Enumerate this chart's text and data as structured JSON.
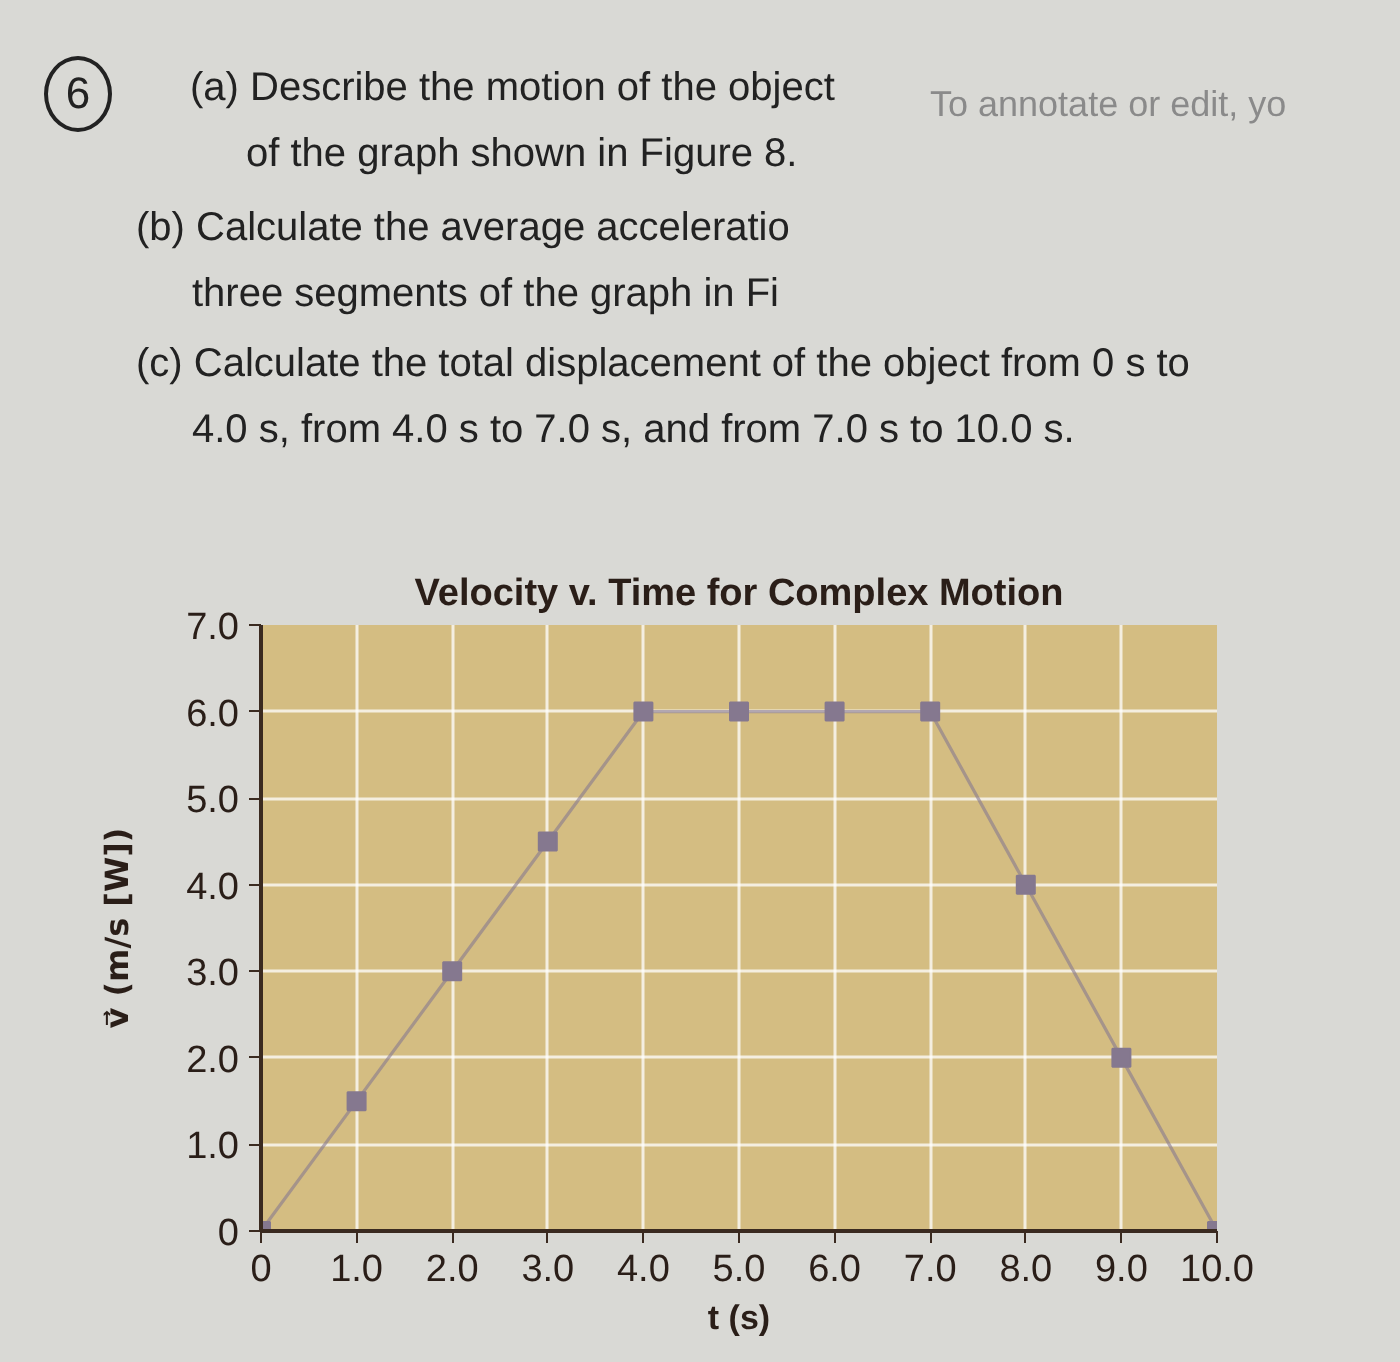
{
  "chart_data": {
    "type": "line",
    "title": "Velocity v. Time for Complex Motion",
    "xlabel": "t (s)",
    "ylabel": "v⃗ (m/s [W])",
    "x": [
      0,
      1,
      2,
      3,
      4,
      5,
      6,
      7,
      8,
      9,
      10
    ],
    "series": [
      {
        "color": "#85788f",
        "values": [
          0,
          1.5,
          3.0,
          4.5,
          6.0,
          6.0,
          6.0,
          6.0,
          4.0,
          2.0,
          0
        ]
      }
    ],
    "xlim": [
      0,
      10
    ],
    "ylim": [
      0,
      7
    ],
    "xticks": [
      0,
      {
        "value": 1,
        "label": "1.0"
      },
      {
        "value": 2,
        "label": "2.0"
      },
      {
        "value": 3,
        "label": "3.0"
      },
      {
        "value": 4,
        "label": "4.0"
      },
      {
        "value": 5,
        "label": "5.0"
      },
      {
        "value": 6,
        "label": "6.0"
      },
      {
        "value": 7,
        "label": "7.0"
      },
      {
        "value": 8,
        "label": "8.0"
      },
      {
        "value": 9,
        "label": "9.0"
      },
      {
        "value": 10,
        "label": "10.0"
      }
    ],
    "yticks": [
      0,
      {
        "value": 1,
        "label": "1.0"
      },
      {
        "value": 2,
        "label": "2.0"
      },
      {
        "value": 3,
        "label": "3.0"
      },
      {
        "value": 4,
        "label": "4.0"
      },
      {
        "value": 5,
        "label": "5.0"
      },
      {
        "value": 6,
        "label": "6.0"
      },
      {
        "value": 7,
        "label": "7.0"
      }
    ],
    "grid": true,
    "marker": "square",
    "line_style": "solid",
    "annotations": [
      "6",
      "(a) Describe the motion of the object of the graph shown in Figure 8.",
      "(b) Calculate the average acceleratio three segments of the graph in Fi",
      "(c) Calculate the total displacement of the object from 0 s to 4.0 s, from 4.0 s to 7.0 s, and from 7.0 s to 10.0 s.",
      "To annotate or edit, yo"
    ]
  }
}
